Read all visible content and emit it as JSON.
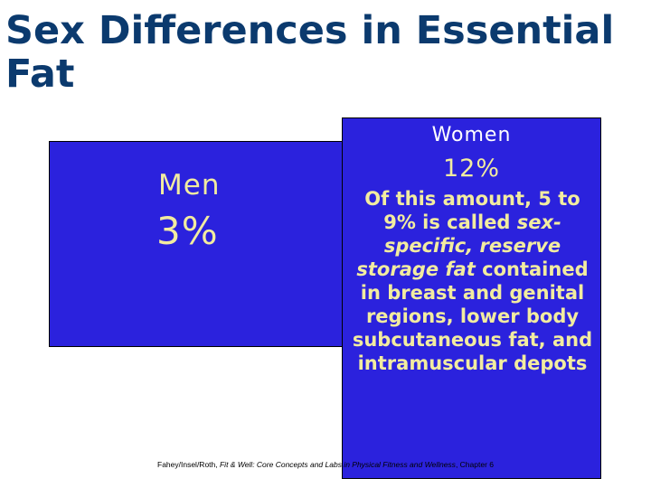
{
  "title": "Sex Differences in Essential Fat",
  "men": {
    "label": "Men",
    "value": "3%"
  },
  "women": {
    "label": "Women",
    "value": "12%",
    "desc_a": "Of this amount, 5 to 9% is called ",
    "desc_em": "sex-specific, reserve storage fat",
    "desc_b": " contained in breast and genital regions, lower body subcutaneous fat, and intramuscular depots"
  },
  "credit": {
    "authors": "Fahey/Insel/Roth, ",
    "book": "Fit & Well: Core Concepts and Labs in Physical Fitness and Wellness",
    "chapter": ", Chapter 6"
  },
  "colors": {
    "title": "#0b3a6e",
    "box": "#2b22dd",
    "text_yellow": "#f2eca0"
  }
}
